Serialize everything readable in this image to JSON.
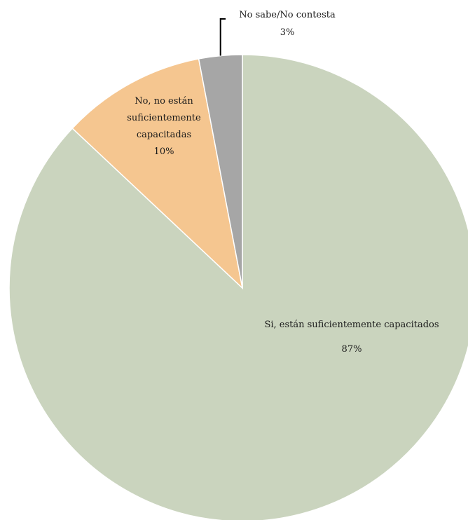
{
  "chart_data": {
    "type": "pie",
    "title": "",
    "start_angle_deg": 0,
    "direction": "clockwise",
    "slices": [
      {
        "label_lines": [
          "Si, están suficientemente capacitados"
        ],
        "value": 87,
        "value_label": "87%",
        "color": "#cad4be"
      },
      {
        "label_lines": [
          "No, no están",
          "suficientemente",
          "capacitadas"
        ],
        "value": 10,
        "value_label": "10%",
        "color": "#f5c690"
      },
      {
        "label_lines": [
          "No sabe/No contesta"
        ],
        "value": 3,
        "value_label": "3%",
        "color": "#a6a6a6"
      }
    ],
    "slice_border_color": "#ffffff",
    "leader_line_color": "#000000"
  }
}
